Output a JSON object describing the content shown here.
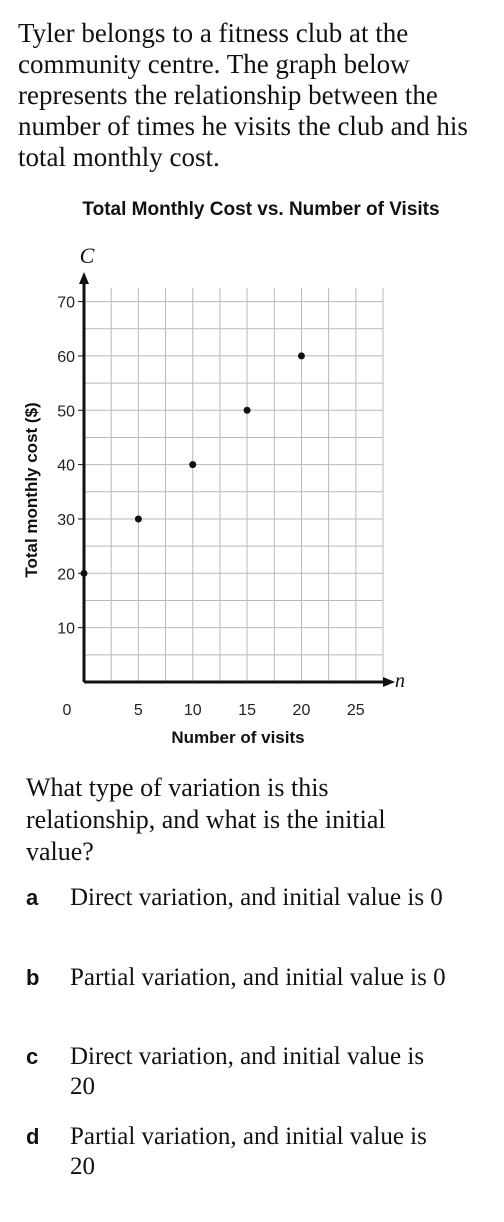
{
  "intro": "Tyler belongs to a fitness club at the community centre. The graph below represents the relationship between the number of times he visits the club and his total monthly cost.",
  "chart_data": {
    "type": "scatter",
    "title": "Total Monthly Cost vs. Number of Visits",
    "xlabel": "Number of visits",
    "ylabel": "Total monthly cost ($)",
    "x_axis_letter": "n",
    "y_axis_letter": "C",
    "origin_label": "0",
    "xlim": [
      0,
      27.5
    ],
    "ylim": [
      0,
      72.5
    ],
    "xticks": [
      5,
      10,
      15,
      20,
      25
    ],
    "yticks": [
      10,
      20,
      30,
      40,
      50,
      60,
      70
    ],
    "grid": true,
    "points": [
      {
        "x": 0,
        "y": 20
      },
      {
        "x": 5,
        "y": 30
      },
      {
        "x": 10,
        "y": 40
      },
      {
        "x": 15,
        "y": 50
      },
      {
        "x": 20,
        "y": 60
      }
    ]
  },
  "question": "What type of variation is this relationship, and what is the initial value?",
  "options": [
    {
      "letter": "a",
      "text": "Direct variation, and initial value is 0"
    },
    {
      "letter": "b",
      "text": "Partial variation, and initial value is 0"
    },
    {
      "letter": "c",
      "text": "Direct variation, and initial value is 20"
    },
    {
      "letter": "d",
      "text": "Partial variation, and initial value is 20"
    }
  ]
}
